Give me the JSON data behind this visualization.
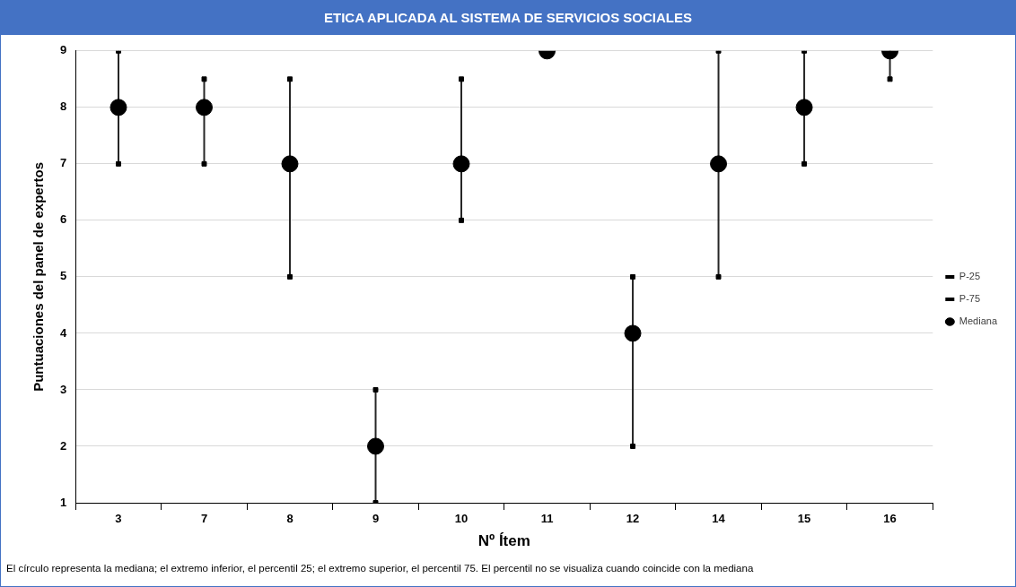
{
  "chart_data": {
    "type": "scatter",
    "title": "ETICA APLICADA AL SISTEMA DE SERVICIOS SOCIALES",
    "xlabel": "Nº Ítem",
    "ylabel": "Puntuaciones del panel de expertos",
    "categories": [
      "3",
      "7",
      "8",
      "9",
      "10",
      "11",
      "12",
      "14",
      "15",
      "16"
    ],
    "series": [
      {
        "name": "P-25",
        "color": "#000000",
        "marker": "square",
        "values": [
          7,
          7,
          5,
          1,
          6,
          null,
          2,
          5,
          7,
          8.5
        ]
      },
      {
        "name": "P-75",
        "color": "#000000",
        "marker": "square",
        "values": [
          9,
          8.5,
          8.5,
          3,
          8.5,
          null,
          5,
          9,
          9,
          null
        ]
      },
      {
        "name": "Mediana",
        "color": "#000000",
        "marker": "circle",
        "values": [
          8,
          8,
          7,
          2,
          7,
          9,
          4,
          7,
          8,
          9
        ]
      }
    ],
    "ylim": [
      1,
      9
    ],
    "yticks": [
      1,
      2,
      3,
      4,
      5,
      6,
      7,
      8,
      9
    ],
    "grid": "y",
    "legend": "right",
    "annotations": [
      "El círculo representa la mediana; el extremo inferior, el percentil 25; el extremo superior, el percentil 75. El percentil no se visualiza cuando coincide con la mediana"
    ]
  }
}
